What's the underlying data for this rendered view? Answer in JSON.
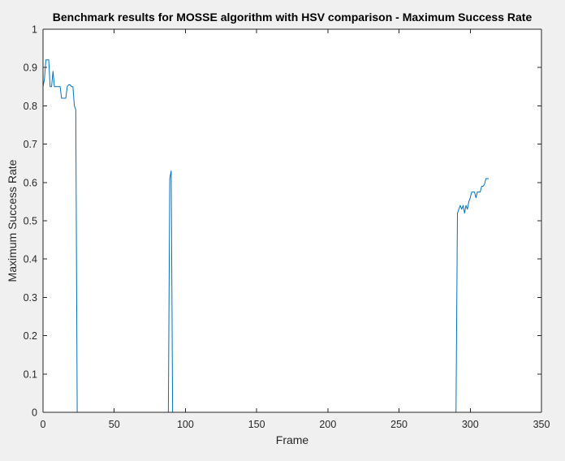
{
  "colors": {
    "figure_background": "#f0f0f0",
    "axes_background": "#ffffff",
    "axis_line": "#262626",
    "series_line": "#0072bd"
  },
  "chart_data": {
    "type": "line",
    "title": "Benchmark results for MOSSE algorithm with HSV comparison - Maximum Success Rate",
    "xlabel": "Frame",
    "ylabel": "Maximum Success Rate",
    "xlim": [
      0,
      350
    ],
    "ylim": [
      0,
      1
    ],
    "xticks": [
      0,
      50,
      100,
      150,
      200,
      250,
      300,
      350
    ],
    "yticks": [
      0,
      0.1,
      0.2,
      0.3,
      0.4,
      0.5,
      0.6,
      0.7,
      0.8,
      0.9,
      1
    ],
    "xtick_labels": [
      "0",
      "50",
      "100",
      "150",
      "200",
      "250",
      "300",
      "350"
    ],
    "ytick_labels": [
      "0",
      "0.1",
      "0.2",
      "0.3",
      "0.4",
      "0.5",
      "0.6",
      "0.7",
      "0.8",
      "0.9",
      "1"
    ],
    "grid": false,
    "legend": "none",
    "series": [
      {
        "x": [
          0,
          1,
          2,
          3,
          4,
          5,
          6,
          7,
          8,
          9,
          10,
          11,
          12,
          13,
          14,
          15,
          16,
          17,
          18,
          19,
          20,
          21,
          22,
          23,
          24,
          25,
          26,
          30,
          40,
          50,
          60,
          70,
          80,
          88,
          89,
          90,
          91,
          92,
          93,
          100,
          150,
          200,
          250,
          290,
          291,
          292,
          293,
          294,
          295,
          296,
          297,
          298,
          299,
          300,
          301,
          302,
          303,
          304,
          305,
          306,
          307,
          308,
          309,
          310,
          311,
          312,
          313
        ],
        "y": [
          0.85,
          0.87,
          0.92,
          0.92,
          0.92,
          0.85,
          0.85,
          0.89,
          0.85,
          0.85,
          0.85,
          0.85,
          0.85,
          0.82,
          0.82,
          0.82,
          0.82,
          0.85,
          0.855,
          0.855,
          0.85,
          0.85,
          0.8,
          0.79,
          0.0,
          0.0,
          0.0,
          0.0,
          0.0,
          0.0,
          0.0,
          0.0,
          0.0,
          0.0,
          0.61,
          0.63,
          0.0,
          0.0,
          0.0,
          0.0,
          0.0,
          0.0,
          0.0,
          0.0,
          0.52,
          0.53,
          0.54,
          0.53,
          0.54,
          0.52,
          0.54,
          0.53,
          0.55,
          0.56,
          0.575,
          0.575,
          0.575,
          0.56,
          0.575,
          0.575,
          0.575,
          0.59,
          0.59,
          0.595,
          0.61,
          0.61,
          0.61
        ]
      }
    ]
  }
}
